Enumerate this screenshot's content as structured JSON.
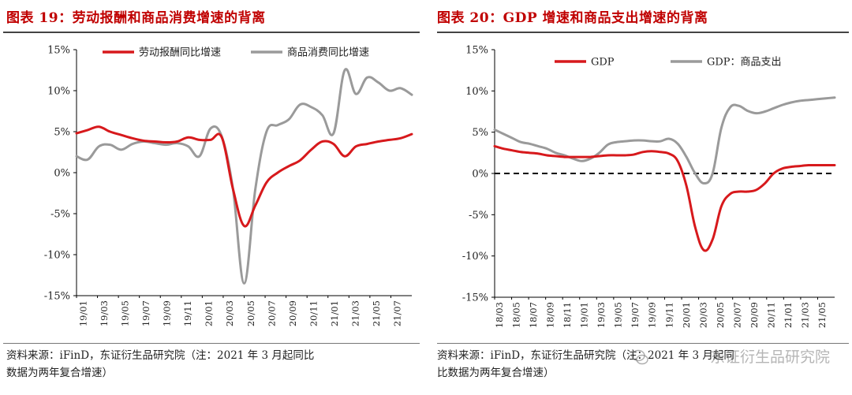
{
  "charts": [
    {
      "title": "图表 19：劳动报酬和商品消费增速的背离",
      "source_line1": "资料来源：iFinD，东证衍生品研究院（注：2021 年 3 月起同比",
      "source_line2": "数据为两年复合增速）"
    },
    {
      "title": "图表 20：GDP 增速和商品支出增速的背离",
      "source_line1": "资料来源：iFinD，东证衍生品研究院（注：2021 年 3 月起同",
      "source_line2": "比数据为两年复合增速）"
    }
  ],
  "watermark": "东证衍生品研究院",
  "chart_data": [
    {
      "type": "line",
      "ylim": [
        -15,
        15
      ],
      "y_ticks": [
        "15%",
        "10%",
        "5%",
        "0%",
        "-5%",
        "-10%",
        "-15%"
      ],
      "y_tick_values": [
        15,
        10,
        5,
        0,
        -5,
        -10,
        -15
      ],
      "categories": [
        "19/01",
        "19/03",
        "19/05",
        "19/07",
        "19/09",
        "19/11",
        "20/01",
        "20/03",
        "20/05",
        "20/07",
        "20/09",
        "20/11",
        "21/01",
        "21/03",
        "21/05",
        "21/07"
      ],
      "x_index": [
        0,
        1,
        2,
        3,
        4,
        5,
        6,
        7,
        8,
        9,
        10,
        11,
        12,
        13,
        14,
        15,
        16,
        17,
        18,
        19,
        20,
        21,
        22,
        23,
        24,
        25,
        26,
        27,
        28,
        29,
        30
      ],
      "series": [
        {
          "name": "劳动报酬同比增速",
          "color": "#d7191c",
          "x": [
            0,
            1,
            2,
            3,
            4,
            5,
            6,
            7,
            8,
            9,
            10,
            11,
            12,
            13,
            14,
            15,
            16,
            17,
            18,
            19,
            20,
            21,
            22,
            23,
            24,
            25,
            26,
            27,
            28,
            29,
            30
          ],
          "values": [
            4.8,
            5.2,
            5.6,
            5.0,
            4.6,
            4.2,
            3.9,
            3.8,
            3.7,
            3.8,
            4.3,
            4.0,
            4.0,
            4.3,
            -2.0,
            -6.5,
            -4.0,
            -1.2,
            0.0,
            0.8,
            1.5,
            2.8,
            3.8,
            3.5,
            2.0,
            3.2,
            3.5,
            3.8,
            4.0,
            4.2,
            4.7
          ]
        },
        {
          "name": "商品消费同比增速",
          "color": "#9a9a9a",
          "x": [
            0,
            1,
            2,
            3,
            4,
            5,
            6,
            7,
            8,
            9,
            10,
            11,
            12,
            13,
            14,
            15,
            16,
            17,
            18,
            19,
            20,
            21,
            22,
            23,
            24,
            25,
            26,
            27,
            28,
            29,
            30
          ],
          "values": [
            2.0,
            1.6,
            3.2,
            3.4,
            2.8,
            3.5,
            3.8,
            3.6,
            3.4,
            3.6,
            3.2,
            2.0,
            5.4,
            4.4,
            -2.0,
            -13.5,
            -2.0,
            5.0,
            5.8,
            6.5,
            8.3,
            8.0,
            7.0,
            4.8,
            12.5,
            9.6,
            11.6,
            11.0,
            10.0,
            10.3,
            9.5
          ]
        }
      ],
      "legend": "top"
    },
    {
      "type": "line",
      "ylim": [
        -15,
        15
      ],
      "y_ticks": [
        "15%",
        "10%",
        "5%",
        "0%",
        "-5%",
        "-10%",
        "-15%"
      ],
      "y_tick_values": [
        15,
        10,
        5,
        0,
        -5,
        -10,
        -15
      ],
      "categories": [
        "18/03",
        "18/05",
        "18/07",
        "18/09",
        "18/11",
        "19/01",
        "19/03",
        "19/05",
        "19/07",
        "19/09",
        "19/11",
        "20/01",
        "20/03",
        "20/05",
        "20/07",
        "20/09",
        "20/11",
        "21/01",
        "21/03",
        "21/05"
      ],
      "series": [
        {
          "name": "GDP",
          "color": "#d7191c",
          "x": [
            0,
            1,
            2,
            3,
            4,
            5,
            6,
            7,
            8,
            9,
            10,
            11,
            12,
            13,
            14,
            15,
            16,
            17,
            18,
            19,
            20,
            21,
            22,
            23,
            24,
            25,
            26,
            27,
            28,
            29,
            30,
            31,
            32,
            33,
            34,
            35,
            36,
            37,
            38,
            39
          ],
          "values": [
            3.3,
            3.0,
            2.8,
            2.6,
            2.5,
            2.4,
            2.2,
            2.1,
            2.0,
            2.0,
            2.0,
            2.0,
            2.1,
            2.2,
            2.2,
            2.2,
            2.3,
            2.6,
            2.7,
            2.6,
            2.4,
            1.5,
            -1.5,
            -6.5,
            -9.3,
            -8.0,
            -4.0,
            -2.5,
            -2.2,
            -2.2,
            -2.0,
            -1.2,
            0.0,
            0.6,
            0.8,
            0.9,
            1.0,
            1.0,
            1.0,
            1.0
          ]
        },
        {
          "name": "GDP：商品支出",
          "color": "#9a9a9a",
          "x": [
            0,
            1,
            2,
            3,
            4,
            5,
            6,
            7,
            8,
            9,
            10,
            11,
            12,
            13,
            14,
            15,
            16,
            17,
            18,
            19,
            20,
            21,
            22,
            23,
            24,
            25,
            26,
            27,
            28,
            29,
            30,
            31,
            32,
            33,
            34,
            35,
            36,
            37,
            38,
            39
          ],
          "values": [
            5.3,
            4.8,
            4.3,
            3.8,
            3.6,
            3.3,
            3.0,
            2.5,
            2.2,
            1.8,
            1.5,
            1.8,
            2.5,
            3.5,
            3.8,
            3.9,
            4.0,
            4.0,
            3.9,
            3.9,
            4.2,
            3.6,
            2.0,
            0.0,
            -1.2,
            0.0,
            5.5,
            8.0,
            8.2,
            7.6,
            7.3,
            7.5,
            7.9,
            8.3,
            8.6,
            8.8,
            8.9,
            9.0,
            9.1,
            9.2
          ]
        }
      ],
      "reference_line": {
        "y": 0,
        "style": "dashed",
        "color": "#000000"
      },
      "legend": "top"
    }
  ]
}
